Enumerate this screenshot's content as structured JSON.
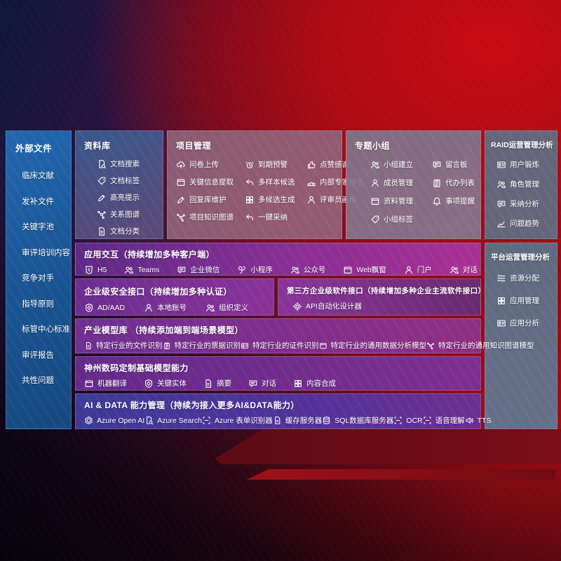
{
  "sidebar": {
    "title": "外部文件",
    "items": [
      {
        "label": "临床文献"
      },
      {
        "label": "发补文件"
      },
      {
        "label": "关键字池"
      },
      {
        "label": "审评培训内容"
      },
      {
        "label": "竞争对手"
      },
      {
        "label": "指导原则"
      },
      {
        "label": "标管中心标准"
      },
      {
        "label": "审评报告"
      },
      {
        "label": "共性问题"
      }
    ]
  },
  "panels": [
    {
      "id": "library",
      "title": "资料库",
      "items": [
        {
          "label": "文档搜索",
          "icon": "doc-search-icon"
        },
        {
          "label": "文档标签",
          "icon": "doc-tag-icon"
        },
        {
          "label": "高亮提示",
          "icon": "highlight-pencil-icon"
        },
        {
          "label": "关系图谱",
          "icon": "relation-graph-icon"
        },
        {
          "label": "文档分类",
          "icon": "doc-classify-icon"
        }
      ]
    },
    {
      "id": "project",
      "title": "项目管理",
      "items": [
        {
          "label": "问卷上传",
          "icon": "cloud-upload-icon"
        },
        {
          "label": "到期预警",
          "icon": "due-alarm-icon"
        },
        {
          "label": "点赞感谢",
          "icon": "thumb-up-icon"
        },
        {
          "label": "关键信息提取",
          "icon": "info-extract-icon"
        },
        {
          "label": "多样本候选",
          "icon": "multi-sample-icon"
        },
        {
          "label": "内部专家排名",
          "icon": "expert-ranking-icon"
        },
        {
          "label": "回复库维护",
          "icon": "reply-maintain-icon"
        },
        {
          "label": "多候选生成",
          "icon": "multi-generate-icon"
        },
        {
          "label": "评审员画像",
          "icon": "reviewer-profile-icon"
        },
        {
          "label": "项目知识图谱",
          "icon": "knowledge-graph-icon"
        },
        {
          "label": "一键采纳",
          "icon": "one-click-adopt-icon"
        }
      ]
    },
    {
      "id": "groups",
      "title": "专题小组",
      "items": [
        {
          "label": "小组建立",
          "icon": "group-create-icon"
        },
        {
          "label": "留言板",
          "icon": "message-board-icon"
        },
        {
          "label": "成员管理",
          "icon": "member-manage-icon"
        },
        {
          "label": "代办列表",
          "icon": "todo-list-icon"
        },
        {
          "label": "资料管理",
          "icon": "material-manage-icon"
        },
        {
          "label": "事项提醒",
          "icon": "reminder-bell-icon"
        },
        {
          "label": "小组标签",
          "icon": "group-tag-icon"
        }
      ]
    },
    {
      "id": "raid",
      "title": "RAID运营管理分析",
      "items": [
        {
          "label": "用户锻炼",
          "icon": "user-card-icon"
        },
        {
          "label": "角色管理",
          "icon": "role-manage-icon"
        },
        {
          "label": "采纳分析",
          "icon": "adopt-analysis-icon"
        },
        {
          "label": "问题趋势",
          "icon": "issue-trend-icon"
        }
      ]
    },
    {
      "id": "platform",
      "title": "平台运营管理分析",
      "items": [
        {
          "label": "资源分配",
          "icon": "resource-allocation-icon"
        },
        {
          "label": "应用管理",
          "icon": "app-manage-icon"
        },
        {
          "label": "应用分析",
          "icon": "app-analysis-icon"
        }
      ]
    }
  ],
  "bands": [
    {
      "id": "interaction",
      "title": "应用交互（持续增加多种客户端）",
      "items": [
        {
          "label": "H5",
          "icon": "h5-icon"
        },
        {
          "label": "Teams",
          "icon": "teams-icon"
        },
        {
          "label": "企业微信",
          "icon": "wecom-icon"
        },
        {
          "label": "小程序",
          "icon": "miniprogram-icon"
        },
        {
          "label": "公众号",
          "icon": "official-account-icon"
        },
        {
          "label": "Web飘窗",
          "icon": "web-popup-icon"
        },
        {
          "label": "门户",
          "icon": "portal-icon"
        },
        {
          "label": "对话",
          "icon": "conversation-icon"
        }
      ]
    },
    {
      "id": "security",
      "title": "企业级安全接口（持续增加多种认证）",
      "items": [
        {
          "label": "AD/AAD",
          "icon": "ad-aad-icon"
        },
        {
          "label": "本地账号",
          "icon": "local-account-icon"
        },
        {
          "label": "组织定义",
          "icon": "org-define-icon"
        }
      ]
    },
    {
      "id": "thirdparty",
      "title": "第三方企业级软件接口（持续增加多种企业主流软件接口）",
      "items": [
        {
          "label": "API自动化设计器",
          "icon": "api-designer-icon"
        }
      ]
    },
    {
      "id": "industry",
      "title": "产业模型库 （持续添加端到端场景模型）",
      "items": [
        {
          "label": "特定行业的文件识别",
          "icon": "file-recognition-icon"
        },
        {
          "label": "特定行业的票据识别",
          "icon": "receipt-recognition-icon"
        },
        {
          "label": "特定行业的证件识别",
          "icon": "idcard-recognition-icon"
        },
        {
          "label": "特定行业的通用数据分析模型",
          "icon": "data-analysis-model-icon"
        },
        {
          "label": "特定行业的通用知识图谱模型",
          "icon": "knowledge-graph-model-icon"
        }
      ]
    },
    {
      "id": "basemodel",
      "title": "神州数码定制基础模型能力",
      "items": [
        {
          "label": "机器翻译",
          "icon": "machine-translation-icon"
        },
        {
          "label": "关键实体",
          "icon": "key-entity-icon"
        },
        {
          "label": "摘要",
          "icon": "summary-icon"
        },
        {
          "label": "对话",
          "icon": "dialog-icon"
        },
        {
          "label": "内容合成",
          "icon": "content-compose-icon"
        }
      ]
    },
    {
      "id": "aidata",
      "title": "AI & DATA 能力管理（持续为接入更多AI&DATA能力）",
      "items": [
        {
          "label": "Azure Open AI",
          "icon": "azure-openai-icon"
        },
        {
          "label": "Azure Search",
          "icon": "azure-search-icon"
        },
        {
          "label": "Azure 表单识别器",
          "icon": "azure-form-recognizer-icon"
        },
        {
          "label": "缓存服务器",
          "icon": "cache-server-icon"
        },
        {
          "label": "SQL数据库服务器",
          "icon": "sql-server-icon"
        },
        {
          "label": "OCR",
          "icon": "ocr-icon"
        },
        {
          "label": "语音理解",
          "icon": "speech-understanding-icon"
        },
        {
          "label": "TTS",
          "icon": "tts-icon"
        }
      ]
    }
  ],
  "colors": {
    "accent_red": "#b00c12",
    "sidebar_blue": "#1c5a9c",
    "band_purple": "#7b3598",
    "band_indigo": "#3d3a96",
    "panel_gray": "#626c80"
  }
}
